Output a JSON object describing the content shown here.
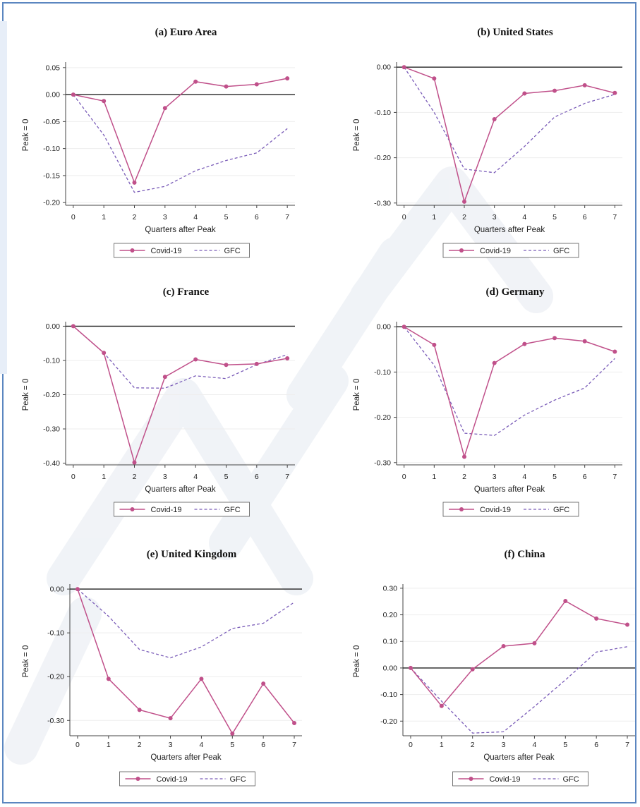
{
  "colors": {
    "covid": "#c0508a",
    "gfc": "#7a5cb8",
    "zero_line": "#222222",
    "frame": "#5b86c0",
    "grid": "#eeeeee"
  },
  "chart_data": [
    {
      "type": "line",
      "title": "(a) Euro Area",
      "xlabel": "Quarters after Peak",
      "ylabel": "Peak = 0",
      "x": [
        0,
        1,
        2,
        3,
        4,
        5,
        6,
        7
      ],
      "xticks": [
        "0",
        "1",
        "2",
        "3",
        "4",
        "5",
        "6",
        "7"
      ],
      "yticks": [
        0.05,
        0.0,
        -0.05,
        -0.1,
        -0.15,
        -0.2
      ],
      "ytick_labels": [
        "0.05",
        "0.00",
        "-0.05",
        "-0.10",
        "-0.15",
        "-0.20"
      ],
      "ylim": [
        -0.205,
        0.055
      ],
      "series": [
        {
          "name": "Covid-19",
          "values": [
            0.0,
            -0.012,
            -0.163,
            -0.025,
            0.024,
            0.015,
            0.019,
            0.03
          ]
        },
        {
          "name": "GFC",
          "values": [
            0.0,
            -0.075,
            -0.181,
            -0.17,
            -0.141,
            -0.122,
            -0.108,
            -0.063
          ]
        }
      ],
      "legend": "bottom",
      "grid": true
    },
    {
      "type": "line",
      "title": "(b) United States",
      "xlabel": "Quarters after Peak",
      "ylabel": "Peak = 0",
      "x": [
        0,
        1,
        2,
        3,
        4,
        5,
        6,
        7
      ],
      "xticks": [
        "0",
        "1",
        "2",
        "3",
        "4",
        "5",
        "6",
        "7"
      ],
      "yticks": [
        0.0,
        -0.1,
        -0.2,
        -0.3
      ],
      "ytick_labels": [
        "0.00",
        "-0.10",
        "-0.20",
        "-0.30"
      ],
      "ylim": [
        -0.305,
        0.005
      ],
      "series": [
        {
          "name": "Covid-19",
          "values": [
            0.0,
            -0.025,
            -0.297,
            -0.115,
            -0.058,
            -0.052,
            -0.04,
            -0.057
          ]
        },
        {
          "name": "GFC",
          "values": [
            0.0,
            -0.1,
            -0.225,
            -0.233,
            -0.175,
            -0.11,
            -0.08,
            -0.06
          ]
        }
      ],
      "legend": "bottom",
      "grid": true
    },
    {
      "type": "line",
      "title": "(c) France",
      "xlabel": "Quarters after Peak",
      "ylabel": "Peak = 0",
      "x": [
        0,
        1,
        2,
        3,
        4,
        5,
        6,
        7
      ],
      "xticks": [
        "0",
        "1",
        "2",
        "3",
        "4",
        "5",
        "6",
        "7"
      ],
      "yticks": [
        0.0,
        -0.1,
        -0.2,
        -0.3,
        -0.4
      ],
      "ytick_labels": [
        "0.00",
        "-0.10",
        "-0.20",
        "-0.30",
        "-0.40"
      ],
      "ylim": [
        -0.405,
        0.005
      ],
      "series": [
        {
          "name": "Covid-19",
          "values": [
            0.0,
            -0.078,
            -0.398,
            -0.148,
            -0.097,
            -0.113,
            -0.11,
            -0.094
          ]
        },
        {
          "name": "GFC",
          "values": [
            0.0,
            -0.078,
            -0.18,
            -0.181,
            -0.145,
            -0.153,
            -0.112,
            -0.083
          ]
        }
      ],
      "legend": "bottom",
      "grid": true
    },
    {
      "type": "line",
      "title": "(d) Germany",
      "xlabel": "Quarters after Peak",
      "ylabel": "Peak = 0",
      "x": [
        0,
        1,
        2,
        3,
        4,
        5,
        6,
        7
      ],
      "xticks": [
        "0",
        "1",
        "2",
        "3",
        "4",
        "5",
        "6",
        "7"
      ],
      "yticks": [
        0.0,
        -0.1,
        -0.2,
        -0.3
      ],
      "ytick_labels": [
        "0.00",
        "-0.10",
        "-0.20",
        "-0.30"
      ],
      "ylim": [
        -0.305,
        0.005
      ],
      "series": [
        {
          "name": "Covid-19",
          "values": [
            0.0,
            -0.04,
            -0.287,
            -0.08,
            -0.038,
            -0.025,
            -0.032,
            -0.055
          ]
        },
        {
          "name": "GFC",
          "values": [
            0.0,
            -0.085,
            -0.235,
            -0.24,
            -0.195,
            -0.162,
            -0.135,
            -0.07
          ]
        }
      ],
      "legend": "bottom",
      "grid": true
    },
    {
      "type": "line",
      "title": "(e) United Kingdom",
      "xlabel": "Quarters after Peak",
      "ylabel": "Peak = 0",
      "x": [
        0,
        1,
        2,
        3,
        4,
        5,
        6,
        7
      ],
      "xticks": [
        "0",
        "1",
        "2",
        "3",
        "4",
        "5",
        "6",
        "7"
      ],
      "yticks": [
        0.0,
        -0.1,
        -0.2,
        -0.3
      ],
      "ytick_labels": [
        "0.00",
        "-0.10",
        "-0.20",
        "-0.30"
      ],
      "ylim": [
        -0.335,
        0.005
      ],
      "series": [
        {
          "name": "Covid-19",
          "values": [
            0.0,
            -0.205,
            -0.276,
            -0.295,
            -0.205,
            -0.33,
            -0.216,
            -0.306
          ]
        },
        {
          "name": "GFC",
          "values": [
            0.0,
            -0.062,
            -0.138,
            -0.157,
            -0.132,
            -0.09,
            -0.078,
            -0.03
          ]
        }
      ],
      "legend": "bottom",
      "grid": true
    },
    {
      "type": "line",
      "title": "(f) China",
      "xlabel": "Quarters after Peak",
      "ylabel": "Peak = 0",
      "x": [
        0,
        1,
        2,
        3,
        4,
        5,
        6,
        7
      ],
      "xticks": [
        "0",
        "1",
        "2",
        "3",
        "4",
        "5",
        "6",
        "7"
      ],
      "yticks": [
        0.3,
        0.2,
        0.1,
        0.0,
        -0.1,
        -0.2
      ],
      "ytick_labels": [
        "0.30",
        "0.20",
        "0.10",
        "0.00",
        "-0.10",
        "-0.20"
      ],
      "ylim": [
        -0.255,
        0.305
      ],
      "series": [
        {
          "name": "Covid-19",
          "values": [
            0.0,
            -0.143,
            -0.005,
            0.082,
            0.093,
            0.252,
            0.186,
            0.163
          ]
        },
        {
          "name": "GFC",
          "values": [
            0.0,
            -0.125,
            -0.245,
            -0.24,
            -0.145,
            -0.045,
            0.06,
            0.08
          ]
        }
      ],
      "legend": "bottom",
      "grid": true
    }
  ]
}
